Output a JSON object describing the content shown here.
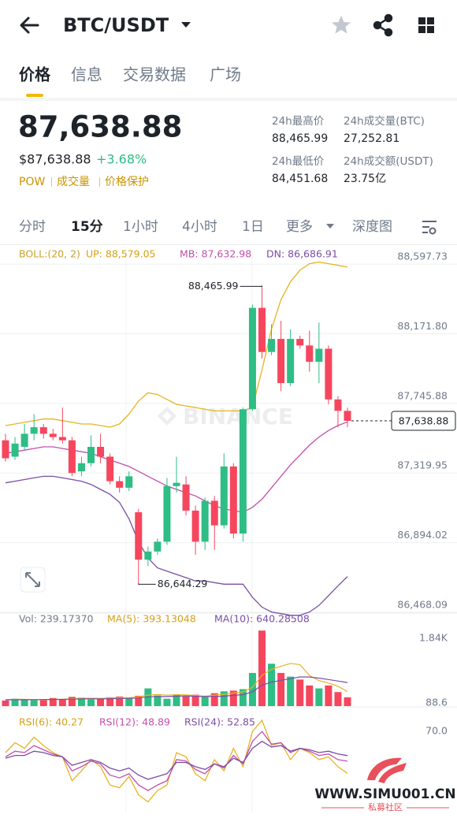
{
  "header": {
    "pair": "BTC/USDT"
  },
  "tabs": {
    "items": [
      "价格",
      "信息",
      "交易数据",
      "广场"
    ],
    "active": 0
  },
  "price": {
    "last": "87,638.88",
    "usd": "$87,638.88",
    "change": "+3.68%",
    "tags": [
      "POW",
      "成交量",
      "价格保护"
    ]
  },
  "stats": [
    {
      "label": "24h最高价",
      "value": "88,465.99"
    },
    {
      "label": "24h成交量(BTC)",
      "value": "27,252.81"
    },
    {
      "label": "24h最低价",
      "value": "84,451.68"
    },
    {
      "label": "24h成交额(USDT)",
      "value": "23.75亿"
    }
  ],
  "intervals": {
    "items": [
      "分时",
      "15分",
      "1小时",
      "4小时",
      "1日",
      "更多"
    ],
    "active": 1,
    "depth": "深度图"
  },
  "watermark": {
    "brand": "BINANCE",
    "site": "WWW.SIMU001.CN",
    "name": "私募社区"
  },
  "chart_data": {
    "type": "candlestick",
    "up_color": "#2ebd85",
    "down_color": "#f6465d",
    "open": [
      87520,
      87420,
      87480,
      87560,
      87600,
      87560,
      87540,
      87520,
      87330,
      87380,
      87480,
      87420,
      87270,
      87230,
      87080,
      86790,
      86840,
      86900,
      87240,
      87250,
      87090,
      86900,
      87150,
      87000,
      87360,
      86950,
      87710,
      88330,
      88060,
      88140,
      87870,
      88140,
      88100,
      88000,
      88080,
      87770,
      87700
    ],
    "high": [
      87560,
      87540,
      87620,
      87680,
      87620,
      87590,
      87720,
      87540,
      87420,
      87550,
      87560,
      87440,
      87300,
      87330,
      87100,
      86870,
      86920,
      87290,
      87420,
      87300,
      87120,
      87170,
      87180,
      87440,
      87380,
      87720,
      88350,
      88465.99,
      88230,
      88250,
      88200,
      88160,
      88190,
      88240,
      88100,
      87790,
      87720
    ],
    "low": [
      87390,
      87400,
      87460,
      87520,
      87530,
      87520,
      87500,
      87300,
      87300,
      87360,
      87380,
      87250,
      87200,
      87210,
      86644.29,
      86750,
      86820,
      86880,
      87200,
      87060,
      86820,
      86850,
      86850,
      86980,
      86920,
      86900,
      87700,
      88020,
      88040,
      87820,
      87850,
      88080,
      87940,
      87870,
      87740,
      87600,
      87600
    ],
    "close": [
      87410,
      87500,
      87560,
      87600,
      87560,
      87540,
      87520,
      87320,
      87380,
      87480,
      87420,
      87270,
      87230,
      87300,
      86790,
      86840,
      86900,
      87240,
      87260,
      87090,
      86900,
      87150,
      87000,
      87360,
      86950,
      87710,
      88330,
      88060,
      88140,
      87870,
      88140,
      88100,
      88000,
      88080,
      87770,
      87700,
      87638.88
    ],
    "ylim": [
      86468.09,
      88680
    ],
    "yticks": [
      {
        "value": 88597.73,
        "label": "88,597.73"
      },
      {
        "value": 88171.8,
        "label": "88,171.80"
      },
      {
        "value": 87745.88,
        "label": "87,745.88"
      },
      {
        "value": 87319.95,
        "label": "87,319.95"
      },
      {
        "value": 86894.02,
        "label": "86,894.02"
      },
      {
        "value": 86468.09,
        "label": "86,468.09"
      }
    ],
    "grid": true,
    "max_label": {
      "value": 88465.99,
      "label": "88,465.99"
    },
    "min_label": {
      "value": 86644.29,
      "label": "86,644.29"
    },
    "last_label": {
      "value": 87638.88,
      "label": "87,638.88"
    },
    "overlay": {
      "legend": [
        {
          "text": "BOLL:(20, 2)",
          "color": "#c9a227"
        },
        {
          "text": "UP: 88,579.05",
          "color": "#d4a017"
        },
        {
          "text": "MB: 87,632.98",
          "color": "#c24fae"
        },
        {
          "text": "DN: 86,686.91",
          "color": "#7a4ea6"
        }
      ],
      "series": [
        {
          "color": "#e6b422",
          "values": [
            87610,
            87620,
            87630,
            87640,
            87650,
            87650,
            87640,
            87630,
            87620,
            87620,
            87610,
            87600,
            87620,
            87680,
            87760,
            87810,
            87800,
            87770,
            87740,
            87730,
            87720,
            87710,
            87700,
            87700,
            87700,
            87700,
            87720,
            87950,
            88200,
            88380,
            88490,
            88560,
            88600,
            88610,
            88600,
            88590,
            88579.05
          ]
        },
        {
          "color": "#c24fae",
          "values": [
            87440,
            87450,
            87460,
            87470,
            87480,
            87480,
            87470,
            87460,
            87450,
            87440,
            87420,
            87400,
            87380,
            87360,
            87330,
            87300,
            87270,
            87240,
            87220,
            87200,
            87180,
            87150,
            87120,
            87100,
            87090,
            87080,
            87110,
            87160,
            87230,
            87300,
            87370,
            87430,
            87490,
            87540,
            87580,
            87610,
            87632.98
          ]
        },
        {
          "color": "#7a4ea6",
          "values": [
            87260,
            87270,
            87280,
            87290,
            87300,
            87300,
            87290,
            87280,
            87270,
            87250,
            87220,
            87190,
            87140,
            87040,
            86900,
            86800,
            86740,
            86720,
            86700,
            86680,
            86660,
            86660,
            86650,
            86640,
            86640,
            86640,
            86560,
            86500,
            86470,
            86460,
            86450,
            86450,
            86470,
            86510,
            86570,
            86630,
            86686.91
          ]
        }
      ]
    },
    "volume": {
      "legend": [
        {
          "text": "Vol: 239.17370",
          "color": "#707a8a"
        },
        {
          "text": "MA(5): 393.13048",
          "color": "#d4a017"
        },
        {
          "text": "MA(10): 640.28508",
          "color": "#7a4ea6"
        }
      ],
      "ylim": [
        0,
        2096
      ],
      "yticks": [
        {
          "value": 1840,
          "label": "1.84K"
        },
        88.6
      ],
      "values": [
        150,
        200,
        180,
        160,
        170,
        220,
        190,
        250,
        230,
        180,
        200,
        240,
        260,
        230,
        280,
        480,
        290,
        200,
        300,
        260,
        310,
        280,
        350,
        400,
        420,
        460,
        900,
        2050,
        1150,
        900,
        800,
        720,
        560,
        480,
        560,
        380,
        239.1737
      ],
      "series": [
        {
          "color": "#e6b422",
          "values": [
            180,
            182,
            184,
            176,
            172,
            184,
            184,
            198,
            212,
            214,
            210,
            220,
            226,
            228,
            248,
            298,
            316,
            296,
            310,
            304,
            288,
            268,
            300,
            320,
            354,
            384,
            506,
            836,
            996,
            1082,
            1160,
            1124,
            830,
            692,
            624,
            540,
            393.13048
          ]
        },
        {
          "color": "#7a4ea6",
          "values": [
            170,
            172,
            174,
            176,
            178,
            180,
            182,
            188,
            195,
            198,
            196,
            202,
            206,
            210,
            220,
            250,
            262,
            258,
            270,
            275,
            268,
            258,
            262,
            270,
            290,
            310,
            388,
            566,
            650,
            700,
            744,
            792,
            790,
            760,
            720,
            680,
            640.28508
          ]
        }
      ]
    },
    "rsi": {
      "legend": [
        {
          "text": "RSI(6): 40.27",
          "color": "#d4a017"
        },
        {
          "text": "RSI(12): 48.89",
          "color": "#c24fae"
        },
        {
          "text": "RSI(24): 52.85",
          "color": "#7a4ea6"
        }
      ],
      "ylim": [
        13,
        83
      ],
      "yticks": [
        {
          "value": 70,
          "label": "70.0"
        }
      ],
      "series": [
        {
          "color": "#e6b422",
          "values": [
            55,
            62,
            58,
            66,
            60,
            55,
            52,
            35,
            42,
            50,
            45,
            32,
            30,
            38,
            25,
            20,
            28,
            32,
            55,
            52,
            40,
            35,
            50,
            42,
            58,
            45,
            70,
            78,
            60,
            62,
            50,
            58,
            55,
            50,
            52,
            45,
            40.27
          ]
        },
        {
          "color": "#c24fae",
          "values": [
            52,
            56,
            55,
            60,
            57,
            54,
            52,
            42,
            45,
            49,
            47,
            39,
            37,
            40,
            32,
            28,
            32,
            35,
            50,
            49,
            43,
            40,
            47,
            44,
            53,
            47,
            63,
            70,
            61,
            62,
            55,
            58,
            56,
            53,
            54,
            50,
            48.89
          ]
        },
        {
          "color": "#7a4ea6",
          "values": [
            51,
            53,
            53,
            56,
            55,
            53,
            52,
            46,
            48,
            50,
            48,
            44,
            42,
            44,
            39,
            36,
            38,
            40,
            48,
            48,
            45,
            43,
            47,
            45,
            51,
            48,
            58,
            63,
            59,
            60,
            56,
            58,
            57,
            55,
            56,
            54,
            52.85
          ]
        }
      ]
    }
  }
}
